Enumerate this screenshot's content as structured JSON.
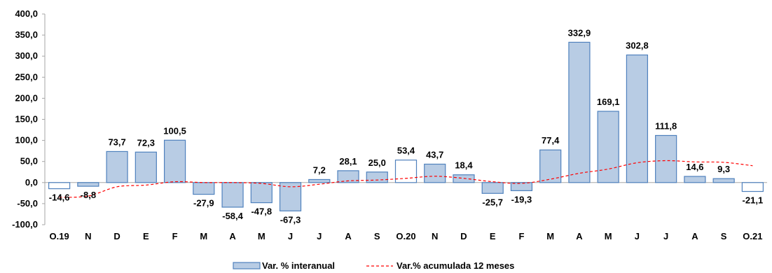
{
  "chart_data": {
    "type": "bar",
    "categories": [
      "O.19",
      "N",
      "D",
      "E",
      "F",
      "M",
      "A",
      "M",
      "J",
      "J",
      "A",
      "S",
      "O.20",
      "N",
      "D",
      "E",
      "F",
      "M",
      "A",
      "M",
      "J",
      "J",
      "A",
      "S",
      "O.21"
    ],
    "series": [
      {
        "name": "Var. % interanual",
        "type": "bar",
        "values": [
          -14.6,
          -8.8,
          73.7,
          72.3,
          100.5,
          -27.9,
          -58.4,
          -47.8,
          -67.3,
          7.2,
          28.1,
          25.0,
          53.4,
          43.7,
          18.4,
          -25.7,
          -19.3,
          77.4,
          332.9,
          169.1,
          302.8,
          111.8,
          14.6,
          9.3,
          -21.1
        ],
        "labels": [
          "-14,6",
          "-8,8",
          "73,7",
          "72,3",
          "100,5",
          "-27,9",
          "-58,4",
          "-47,8",
          "-67,3",
          "7,2",
          "28,1",
          "25,0",
          "53,4",
          "43,7",
          "18,4",
          "-25,7",
          "-19,3",
          "77,4",
          "332,9",
          "169,1",
          "302,8",
          "111,8",
          "14,6",
          "9,3",
          "-21,1"
        ]
      },
      {
        "name": "Var.% acumulada 12 meses",
        "type": "line",
        "style": "dashed",
        "values": [
          -35,
          -32,
          -10,
          -6,
          2,
          0,
          0,
          -2,
          -10,
          -4,
          4,
          6,
          10,
          15,
          10,
          2,
          -2,
          8,
          22,
          32,
          47,
          52,
          49,
          48,
          40
        ]
      }
    ],
    "highlighted_bars": [
      0,
      12,
      24
    ],
    "ylim": [
      -100,
      400
    ],
    "yticks": [
      "-100,0",
      "-50,0",
      "0,0",
      "50,0",
      "100,0",
      "150,0",
      "200,0",
      "250,0",
      "300,0",
      "350,0",
      "400,0"
    ],
    "grid": false,
    "legend_position": "bottom",
    "colors": {
      "bar_fill": "#b8cce4",
      "bar_stroke": "#4f81bd",
      "highlight_fill": "#ffffff",
      "line": "#ff0000",
      "axis": "#a6a6a6"
    }
  }
}
